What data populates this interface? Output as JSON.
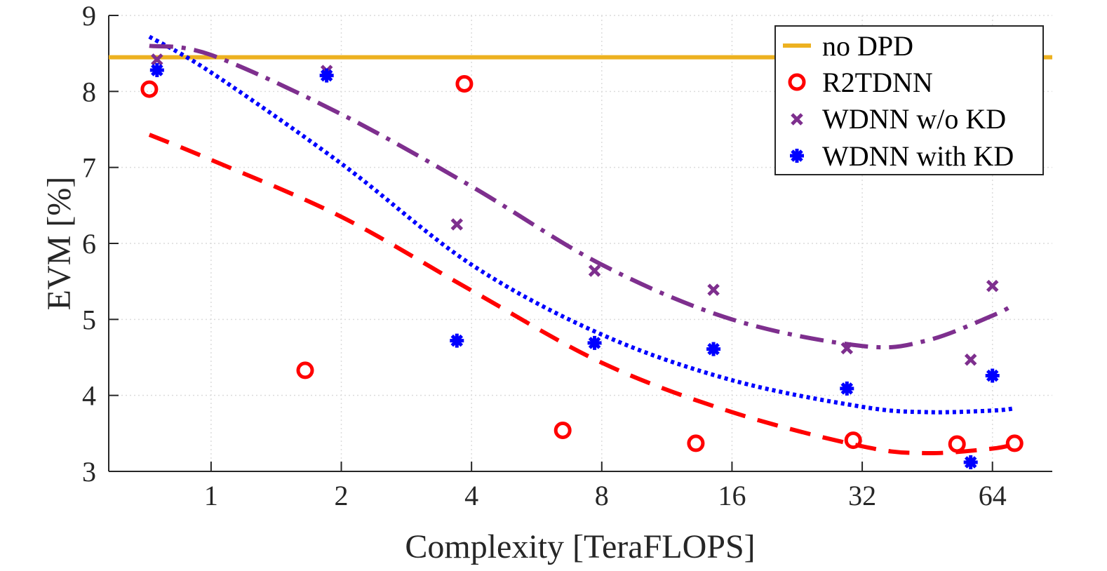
{
  "chart_data": {
    "type": "scatter",
    "xlabel": "Complexity [TeraFLOPS]",
    "ylabel": "EVM [%]",
    "x_scale": "log2",
    "xlim": [
      0.58,
      88
    ],
    "ylim": [
      3,
      9
    ],
    "x_ticks": [
      1,
      2,
      4,
      8,
      16,
      32,
      64
    ],
    "x_tick_labels": [
      "1",
      "2",
      "4",
      "8",
      "16",
      "32",
      "64"
    ],
    "y_ticks": [
      3,
      4,
      5,
      6,
      7,
      8,
      9
    ],
    "y_tick_labels": [
      "3",
      "4",
      "5",
      "6",
      "7",
      "8",
      "9"
    ],
    "grid": true,
    "legend_position": "top-right",
    "reference_line": {
      "name": "no DPD",
      "y": 8.45,
      "color": "#EDB120"
    },
    "series": [
      {
        "name": "R2TDNN",
        "marker": "circle",
        "color": "#FF0000",
        "x": [
          0.72,
          1.65,
          3.85,
          6.5,
          13.2,
          30.5,
          53,
          72
        ],
        "y": [
          8.03,
          4.33,
          8.1,
          3.54,
          3.37,
          3.41,
          3.36,
          3.37
        ]
      },
      {
        "name": "WDNN w/o KD",
        "marker": "x",
        "color": "#7E2F8E",
        "x": [
          0.75,
          1.85,
          3.7,
          7.7,
          14.5,
          29.5,
          57,
          64
        ],
        "y": [
          8.42,
          8.27,
          6.25,
          5.64,
          5.39,
          4.62,
          4.47,
          5.44
        ]
      },
      {
        "name": "WDNN with KD",
        "marker": "asterisk",
        "color": "#0000FF",
        "x": [
          0.75,
          1.85,
          3.7,
          7.7,
          14.5,
          29.5,
          57,
          64
        ],
        "y": [
          8.28,
          8.21,
          4.72,
          4.69,
          4.61,
          4.09,
          3.12,
          4.26
        ]
      }
    ],
    "fit_curves": [
      {
        "series": "R2TDNN",
        "style": "dashed",
        "color": "#FF0000",
        "x": [
          0.72,
          1,
          2,
          4,
          8,
          16,
          32,
          45,
          64,
          72
        ],
        "y": [
          7.43,
          7.1,
          6.35,
          5.38,
          4.43,
          3.78,
          3.33,
          3.24,
          3.3,
          3.36
        ]
      },
      {
        "series": "WDNN with KD",
        "style": "dotted",
        "color": "#0000FF",
        "x": [
          0.72,
          1,
          2,
          4,
          8,
          16,
          32,
          45,
          64,
          72
        ],
        "y": [
          8.72,
          8.25,
          7.05,
          5.72,
          4.8,
          4.2,
          3.85,
          3.78,
          3.8,
          3.83
        ]
      },
      {
        "series": "WDNN w/o KD",
        "style": "dashdot",
        "color": "#7E2F8E",
        "x": [
          0.72,
          1,
          2,
          4,
          8,
          16,
          32,
          45,
          64,
          72
        ],
        "y": [
          8.6,
          8.48,
          7.7,
          6.75,
          5.72,
          5.0,
          4.65,
          4.72,
          5.05,
          5.2
        ]
      }
    ]
  }
}
